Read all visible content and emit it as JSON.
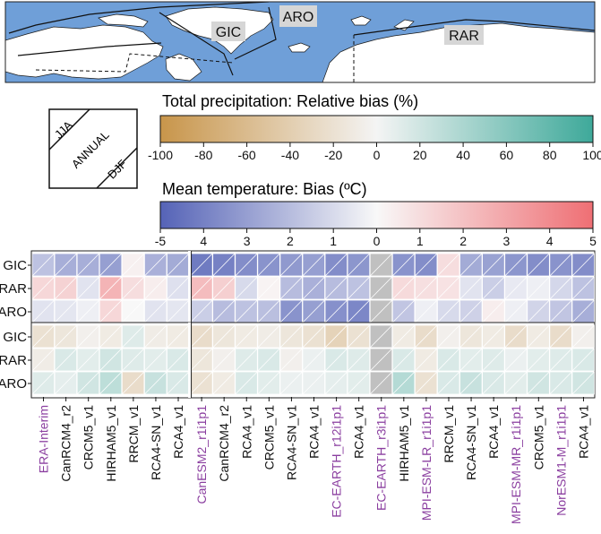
{
  "map": {
    "region_labels": [
      "ARO",
      "GIC",
      "RAR"
    ]
  },
  "legend_box": {
    "top_label": "JJA",
    "middle_label": "ANNUAL",
    "bottom_label": "DJF"
  },
  "precip_colorbar": {
    "title": "Total precipitation: Relative bias (%)",
    "ticks": [
      "-100",
      "-80",
      "-60",
      "-40",
      "-20",
      "0",
      "20",
      "40",
      "60",
      "80",
      "100"
    ],
    "colors": [
      "#c8954a",
      "#f4f4f4",
      "#3ea99a"
    ]
  },
  "temp_colorbar": {
    "title": "Mean temperature: Bias (ºC)",
    "ticks": [
      "-5",
      "4",
      "3",
      "2",
      "1",
      "0",
      "1",
      "2",
      "3",
      "4",
      "5"
    ],
    "colors": [
      "#5563b7",
      "#f8f8f8",
      "#ef6f74"
    ]
  },
  "chart_data": {
    "type": "heatmap",
    "regions": [
      "GIC",
      "RAR",
      "ARO"
    ],
    "columns": [
      {
        "label": "ERA-Interim",
        "highlight": true
      },
      {
        "label": "CanRCM4_r2",
        "highlight": false
      },
      {
        "label": "CRCM5_v1",
        "highlight": false
      },
      {
        "label": "HIRHAM5_v1",
        "highlight": false
      },
      {
        "label": "RRCM_v1",
        "highlight": false
      },
      {
        "label": "RCA4-SN_v1",
        "highlight": false
      },
      {
        "label": "RCA4_v1",
        "highlight": false
      },
      {
        "label": "CanESM2_r1i1p1",
        "highlight": true
      },
      {
        "label": "CanRCM4_r2",
        "highlight": false
      },
      {
        "label": "RCA4_v1",
        "highlight": false
      },
      {
        "label": "CRCM5_v1",
        "highlight": false
      },
      {
        "label": "RCA4-SN_v1",
        "highlight": false
      },
      {
        "label": "RCA4_v1",
        "highlight": false
      },
      {
        "label": "EC-EARTH_r12i1p1",
        "highlight": true
      },
      {
        "label": "RCA4_v1",
        "highlight": false
      },
      {
        "label": "EC-EARTH_r3i1p1",
        "highlight": true
      },
      {
        "label": "HIRHAM5_v1",
        "highlight": false
      },
      {
        "label": "MPI-ESM-LR_r1i1p1",
        "highlight": true
      },
      {
        "label": "RRCM_v1",
        "highlight": false
      },
      {
        "label": "RCA4-SN_v1",
        "highlight": false
      },
      {
        "label": "RCA4_v1",
        "highlight": false
      },
      {
        "label": "MPI-ESM-MR_r1i1p1",
        "highlight": true
      },
      {
        "label": "CRCM5_v1",
        "highlight": false
      },
      {
        "label": "NorESM1-M_r1i1p1",
        "highlight": true
      },
      {
        "label": "RCA4_v1",
        "highlight": false
      }
    ],
    "temperature_bias_annual": [
      [
        -1.8,
        -2.5,
        -2.5,
        -3.0,
        0.3,
        -2.4,
        -2.6,
        -4.2,
        -4.0,
        -3.6,
        -3.4,
        -3.2,
        -3.0,
        -3.6,
        -3.3,
        null,
        -3.4,
        -3.6,
        1.0,
        -2.6,
        -2.9,
        -3.3,
        -3.6,
        -3.4,
        -3.6
      ],
      [
        1.2,
        1.4,
        -0.7,
        2.5,
        1.0,
        0.4,
        -0.8,
        2.2,
        1.5,
        -1.0,
        0.2,
        -2.0,
        -2.4,
        -2.0,
        -1.8,
        null,
        1.1,
        0.9,
        0.8,
        -0.7,
        -1.4,
        -0.5,
        -0.3,
        -1.1,
        -1.8
      ],
      [
        -0.7,
        -0.6,
        -0.3,
        1.2,
        0.0,
        -0.7,
        -0.6,
        -1.4,
        -2.0,
        -1.8,
        -1.9,
        -3.4,
        -3.0,
        -3.5,
        -3.8,
        null,
        -1.7,
        -0.3,
        -1.0,
        -1.3,
        0.4,
        -0.3,
        -1.2,
        -1.7,
        -2.5
      ]
    ],
    "precipitation_bias_annual": [
      [
        -20,
        -15,
        -5,
        -10,
        12,
        -8,
        -10,
        -25,
        -15,
        -10,
        -8,
        -15,
        -20,
        -35,
        -20,
        null,
        -10,
        -25,
        -5,
        -15,
        -10,
        -25,
        -10,
        -25,
        -5
      ],
      [
        -8,
        15,
        10,
        20,
        12,
        10,
        15,
        -15,
        -5,
        12,
        15,
        -5,
        5,
        15,
        12,
        null,
        15,
        -10,
        15,
        10,
        12,
        5,
        10,
        12,
        15
      ],
      [
        12,
        8,
        20,
        30,
        -25,
        25,
        15,
        -20,
        -10,
        15,
        10,
        5,
        5,
        8,
        10,
        null,
        35,
        -20,
        15,
        25,
        15,
        10,
        20,
        15,
        20
      ]
    ]
  }
}
